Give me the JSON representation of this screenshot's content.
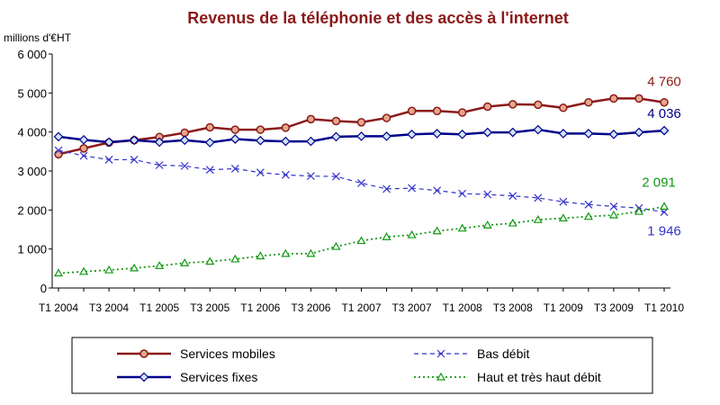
{
  "chart_data": {
    "type": "line",
    "title": "Revenus de la téléphonie et des accès à l'internet",
    "ylabel": "millions d'€HT",
    "ylim": [
      0,
      6000
    ],
    "yticks": [
      "0",
      "1 000",
      "2 000",
      "3 000",
      "4 000",
      "5 000",
      "6 000"
    ],
    "ytick_values": [
      0,
      1000,
      2000,
      3000,
      4000,
      5000,
      6000
    ],
    "x": [
      "T1 2004",
      "T2 2004",
      "T3 2004",
      "T4 2004",
      "T1 2005",
      "T2 2005",
      "T3 2005",
      "T4 2005",
      "T1 2006",
      "T2 2006",
      "T3 2006",
      "T4 2006",
      "T1 2007",
      "T2 2007",
      "T3 2007",
      "T4 2007",
      "T1 2008",
      "T2 2008",
      "T3 2008",
      "T4 2008",
      "T1 2009",
      "T2 2009",
      "T3 2009",
      "T4 2009",
      "T1 2010"
    ],
    "xtick_labels": [
      "T1 2004",
      "T3 2004",
      "T1 2005",
      "T3 2005",
      "T1 2006",
      "T3 2006",
      "T1 2007",
      "T3 2007",
      "T1 2008",
      "T3 2008",
      "T1 2009",
      "T3 2009",
      "T1 2010"
    ],
    "grid": false,
    "legend_position": "bottom",
    "series": [
      {
        "name": "Services mobiles",
        "color": "#8b1a1a",
        "marker": "circle",
        "style": "solid",
        "values": [
          3430,
          3580,
          3730,
          3790,
          3870,
          3980,
          4120,
          4060,
          4060,
          4110,
          4330,
          4280,
          4250,
          4360,
          4540,
          4540,
          4500,
          4650,
          4710,
          4700,
          4620,
          4760,
          4860,
          4860,
          4760
        ],
        "end_label": "4 760"
      },
      {
        "name": "Services fixes",
        "color": "#00008b",
        "marker": "diamond",
        "style": "solid",
        "values": [
          3880,
          3800,
          3740,
          3790,
          3740,
          3790,
          3730,
          3820,
          3780,
          3760,
          3760,
          3880,
          3890,
          3890,
          3940,
          3960,
          3940,
          3990,
          3990,
          4060,
          3960,
          3960,
          3940,
          3990,
          4036
        ],
        "end_label": "4 036"
      },
      {
        "name": "Bas débit",
        "color": "#3333cc",
        "marker": "x",
        "style": "dashed",
        "values": [
          3530,
          3390,
          3290,
          3290,
          3150,
          3130,
          3030,
          3060,
          2960,
          2900,
          2870,
          2860,
          2690,
          2540,
          2560,
          2500,
          2420,
          2400,
          2360,
          2310,
          2210,
          2140,
          2090,
          2050,
          1946
        ],
        "end_label": "1 946"
      },
      {
        "name": "Haut et très haut débit",
        "color": "#119911",
        "marker": "triangle",
        "style": "dotted",
        "values": [
          380,
          420,
          460,
          510,
          570,
          640,
          680,
          740,
          820,
          880,
          880,
          1060,
          1210,
          1310,
          1360,
          1460,
          1530,
          1610,
          1660,
          1750,
          1790,
          1830,
          1870,
          1960,
          2091
        ],
        "end_label": "2 091"
      }
    ]
  }
}
